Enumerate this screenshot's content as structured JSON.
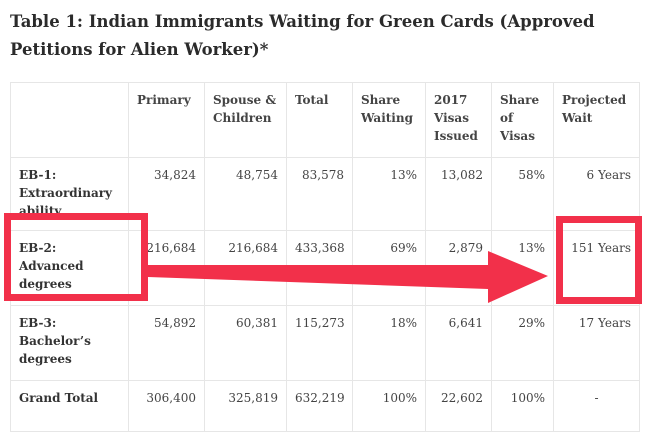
{
  "title": "Table 1: Indian Immigrants Waiting for Green Cards (Approved Petitions for Alien Worker)*",
  "columns": [
    "",
    "Primary",
    "Spouse & Children",
    "Total",
    "Share Waiting",
    "2017 Visas Issued",
    "Share of Visas",
    "Projected Wait"
  ],
  "rows": [
    {
      "category": "EB-1: Extraordinary ability",
      "primary": "34,824",
      "spouse": "48,754",
      "total": "83,578",
      "share_waiting": "13%",
      "visas_2017": "13,082",
      "share_visas": "58%",
      "wait": "6 Years"
    },
    {
      "category": "EB-2: Advanced degrees",
      "primary": "216,684",
      "spouse": "216,684",
      "total": "433,368",
      "share_waiting": "69%",
      "visas_2017": "2,879",
      "share_visas": "13%",
      "wait": "151 Years"
    },
    {
      "category": "EB-3: Bachelor’s degrees",
      "primary": "54,892",
      "spouse": "60,381",
      "total": "115,273",
      "share_waiting": "18%",
      "visas_2017": "6,641",
      "share_visas": "29%",
      "wait": "17 Years"
    },
    {
      "category": "Grand Total",
      "primary": "306,400",
      "spouse": "325,819",
      "total": "632,219",
      "share_waiting": "100%",
      "visas_2017": "22,602",
      "share_visas": "100%",
      "wait": "-"
    }
  ],
  "annotation": {
    "color": "#f2304a",
    "shapes": [
      "highlight-box",
      "arrow-right",
      "highlight-box"
    ]
  }
}
